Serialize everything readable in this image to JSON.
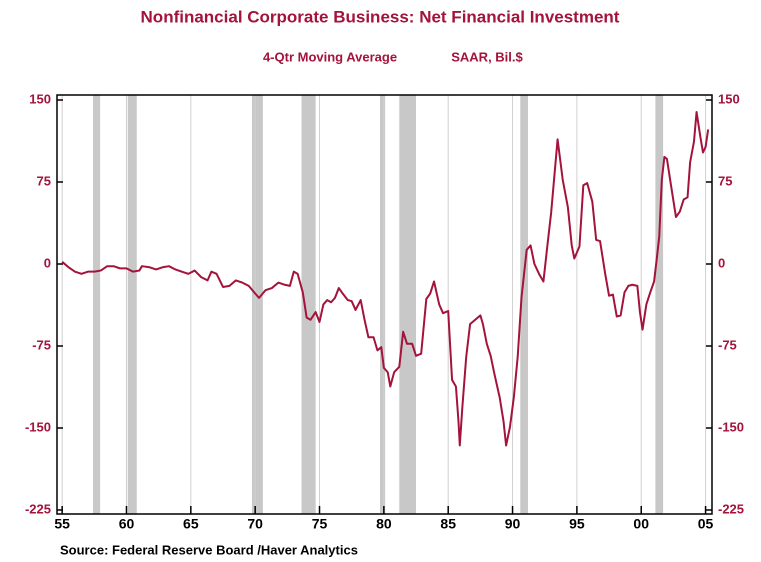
{
  "chart_data": {
    "type": "line",
    "title": "Nonfinancial Corporate Business: Net Financial Investment",
    "subtitle": "4-Qtr Moving Average",
    "units": "SAAR, Bil.$",
    "source": "Source:  Federal Reserve Board /Haver Analytics",
    "xlim": [
      1954.6,
      2005.5
    ],
    "xticks": [
      {
        "value": 1955,
        "label": "55"
      },
      {
        "value": 1960,
        "label": "60"
      },
      {
        "value": 1965,
        "label": "65"
      },
      {
        "value": 1970,
        "label": "70"
      },
      {
        "value": 1975,
        "label": "75"
      },
      {
        "value": 1980,
        "label": "80"
      },
      {
        "value": 1985,
        "label": "85"
      },
      {
        "value": 1990,
        "label": "90"
      },
      {
        "value": 1995,
        "label": "95"
      },
      {
        "value": 2000,
        "label": "00"
      },
      {
        "value": 2005,
        "label": "05"
      }
    ],
    "ylim": [
      -225,
      150
    ],
    "yticks": [
      150,
      75,
      0,
      -75,
      -150,
      -225
    ],
    "grid": true,
    "recessions": [
      [
        1957.4,
        1957.95
      ],
      [
        1960.1,
        1960.8
      ],
      [
        1969.75,
        1970.6
      ],
      [
        1973.6,
        1974.7
      ],
      [
        1979.7,
        1980.1
      ],
      [
        1981.2,
        1982.5
      ],
      [
        1990.6,
        1991.2
      ],
      [
        2001.1,
        2001.7
      ]
    ],
    "recession_color": "#c8c8c8",
    "series": [
      {
        "name": "Net Financial Investment",
        "color": "#a3133b",
        "x": [
          1955.0,
          1955.5,
          1956,
          1956.5,
          1957,
          1957.5,
          1958,
          1958.5,
          1959,
          1959.5,
          1960,
          1960.5,
          1961,
          1961.2,
          1961.8,
          1962.3,
          1962.8,
          1963.3,
          1963.8,
          1964.3,
          1964.8,
          1965.3,
          1965.8,
          1966.3,
          1966.6,
          1967,
          1967.5,
          1968,
          1968.5,
          1969,
          1969.5,
          1970,
          1970.3,
          1970.8,
          1971.3,
          1971.8,
          1972.3,
          1972.7,
          1973,
          1973.3,
          1973.7,
          1974,
          1974.3,
          1974.7,
          1975,
          1975.3,
          1975.6,
          1975.9,
          1976.2,
          1976.5,
          1976.8,
          1977.2,
          1977.5,
          1977.8,
          1978.2,
          1978.5,
          1978.8,
          1979.2,
          1979.5,
          1979.8,
          1980.0,
          1980.3,
          1980.5,
          1980.8,
          1981.2,
          1981.5,
          1981.8,
          1982.2,
          1982.5,
          1982.9,
          1983.3,
          1983.6,
          1983.9,
          1984.3,
          1984.6,
          1985.0,
          1985.3,
          1985.6,
          1985.8,
          1985.9,
          1986.1,
          1986.4,
          1986.7,
          1987.1,
          1987.5,
          1987.7,
          1988.0,
          1988.3,
          1988.6,
          1989.0,
          1989.3,
          1989.5,
          1989.8,
          1990.1,
          1990.4,
          1990.7,
          1991.1,
          1991.4,
          1991.7,
          1992.1,
          1992.4,
          1992.7,
          1993.0,
          1993.5,
          1993.9,
          1994.3,
          1994.6,
          1994.8,
          1995.2,
          1995.5,
          1995.8,
          1996.2,
          1996.5,
          1996.8,
          1997.2,
          1997.5,
          1997.8,
          1998.1,
          1998.4,
          1998.7,
          1999.0,
          1999.3,
          1999.7,
          1999.9,
          2000.1,
          2000.4,
          2000.7,
          2001.0,
          2001.2,
          2001.4,
          2001.6,
          2001.8,
          2002.0,
          2002.3,
          2002.7,
          2003.0,
          2003.3,
          2003.6,
          2003.8,
          2004.1,
          2004.3,
          2004.6,
          2004.8,
          2005.0,
          2005.2
        ],
        "values": [
          2,
          -3,
          -7,
          -9,
          -7,
          -7,
          -6,
          -2,
          -2,
          -4,
          -4,
          -7,
          -6,
          -2,
          -3,
          -5,
          -3,
          -2,
          -5,
          -7,
          -9,
          -6,
          -12,
          -15,
          -7,
          -9,
          -21,
          -20,
          -15,
          -17,
          -20,
          -27,
          -31,
          -24,
          -22,
          -17,
          -19,
          -20,
          -7,
          -9,
          -26,
          -49,
          -51,
          -44,
          -53,
          -37,
          -33,
          -35,
          -31,
          -22,
          -27,
          -33,
          -34,
          -42,
          -33,
          -51,
          -67,
          -67,
          -79,
          -76,
          -95,
          -99,
          -112,
          -99,
          -94,
          -62,
          -73,
          -73,
          -84,
          -82,
          -32,
          -27,
          -16,
          -37,
          -45,
          -43,
          -106,
          -112,
          -144,
          -166,
          -131,
          -85,
          -55,
          -51,
          -47,
          -55,
          -73,
          -84,
          -101,
          -122,
          -144,
          -166,
          -149,
          -122,
          -85,
          -30,
          13,
          17,
          0,
          -10,
          -16,
          16,
          47,
          114,
          77,
          52,
          17,
          5,
          16,
          72,
          74,
          57,
          22,
          21,
          -9,
          -29,
          -28,
          -48,
          -47,
          -26,
          -20,
          -19,
          -20,
          -44,
          -60,
          -37,
          -26,
          -16,
          4,
          25,
          77,
          98,
          96,
          73,
          43,
          48,
          59,
          61,
          93,
          112,
          139,
          116,
          102,
          107,
          123
        ]
      }
    ]
  }
}
